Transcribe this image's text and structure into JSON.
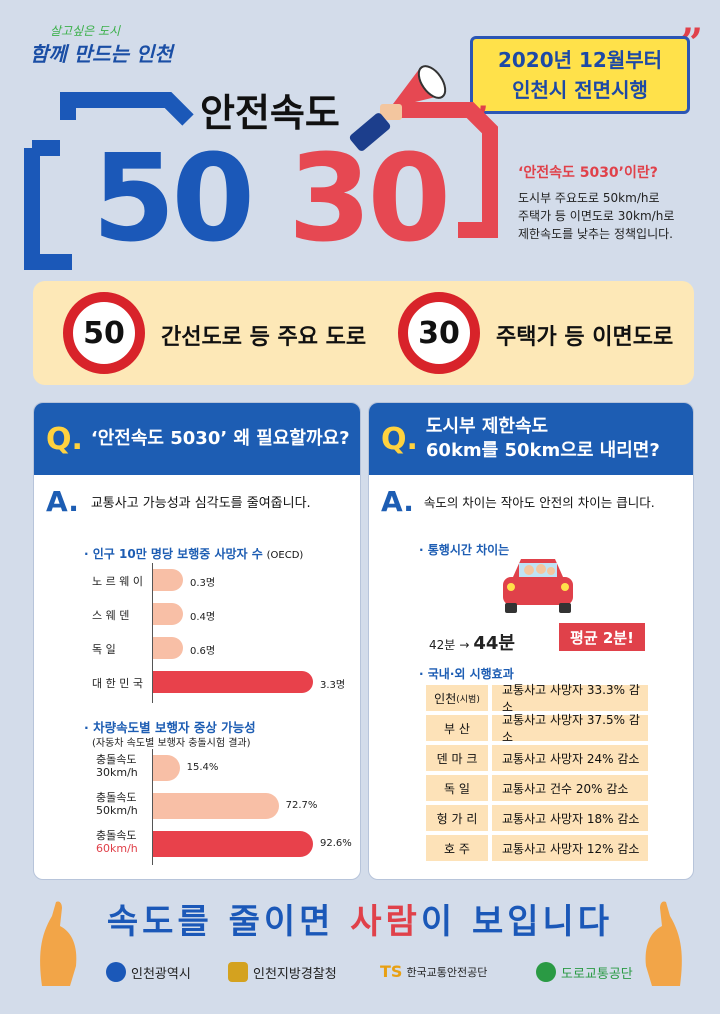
{
  "header": {
    "slogan_top": "살고싶은 도시",
    "slogan_bottom": "함께 만드는 인천",
    "banner_line1": "2020년 12월부터",
    "banner_line2": "인천시 전면시행",
    "title": "안전속도",
    "num_50": "50",
    "num_30": "30"
  },
  "definition": {
    "title": "‘안전속도 5030’이란?",
    "line1": "도시부 주요도로 50km/h로",
    "line2": "주택가 등 이면도로 30km/h로",
    "line3": "제한속도를 낮추는 정책입니다."
  },
  "signs": [
    {
      "value": "50",
      "label": "간선도로 등 주요 도로"
    },
    {
      "value": "30",
      "label": "주택가 등 이면도로"
    }
  ],
  "left_panel": {
    "q": "Q.",
    "question": "‘안전속도 5030’ 왜 필요할까요?",
    "a": "A.",
    "answer": "교통사고 가능성과 심각도를 줄여줍니다.",
    "chart1_title": "인구 10만 명당 보행중 사망자 수",
    "chart1_unit": "(OECD)",
    "chart2_title": "차량속도별 보행자 중상 가능성",
    "chart2_subtitle": "(자동차 속도별 보행자 충돌시험 결과)"
  },
  "chart_data": [
    {
      "type": "bar",
      "title": "인구 10만 명당 보행중 사망자 수",
      "categories": [
        "노 르 웨 이",
        "스 웨 덴",
        "독 일",
        "대 한 민 국"
      ],
      "values": [
        0.3,
        0.4,
        0.6,
        3.3
      ],
      "value_labels": [
        "0.3명",
        "0.4명",
        "0.6명",
        "3.3명"
      ],
      "colors": [
        "#f8bfa6",
        "#f8bfa6",
        "#f8bfa6",
        "#e8414b"
      ]
    },
    {
      "type": "bar",
      "title": "차량속도별 보행자 중상 가능성",
      "categories": [
        "충돌속도 30km/h",
        "충돌속도 50km/h",
        "충돌속도 60km/h"
      ],
      "values": [
        15.4,
        72.7,
        92.6
      ],
      "value_labels": [
        "15.4%",
        "72.7%",
        "92.6%"
      ],
      "colors": [
        "#f8bfa6",
        "#f8bfa6",
        "#e8414b"
      ]
    }
  ],
  "right_panel": {
    "q": "Q.",
    "question_line1": "도시부 제한속도",
    "question_line2": "60km를 50km으로 내리면?",
    "a": "A.",
    "answer": "속도의 차이는 작아도 안전의 차이는 큽니다.",
    "travel_title": "통행시간 차이는",
    "time_before": "42분",
    "arrow": "→",
    "time_after": "44분",
    "avg_badge": "평균 2분!",
    "effects_title": "국내·외 시행효과",
    "effects": [
      {
        "place": "인천",
        "place_note": "(시범)",
        "effect": "교통사고 사망자 33.3% 감소"
      },
      {
        "place": "부 산",
        "place_note": "",
        "effect": "교통사고 사망자 37.5% 감소"
      },
      {
        "place": "덴 마 크",
        "place_note": "",
        "effect": "교통사고 사망자 24% 감소"
      },
      {
        "place": "독 일",
        "place_note": "",
        "effect": "교통사고 건수 20% 감소"
      },
      {
        "place": "헝 가 리",
        "place_note": "",
        "effect": "교통사고 사망자 18% 감소"
      },
      {
        "place": "호 주",
        "place_note": "",
        "effect": "교통사고 사망자 12% 감소"
      }
    ]
  },
  "footer": {
    "slogan_part1": "속도",
    "slogan_part2": "를 줄이면 ",
    "slogan_part3": "사람",
    "slogan_part4": "이 보입니다",
    "logos": [
      "인천광역시",
      "인천지방경찰청",
      "한국교통안전공단",
      "도로교통공단"
    ],
    "ts_mark": "TS"
  }
}
